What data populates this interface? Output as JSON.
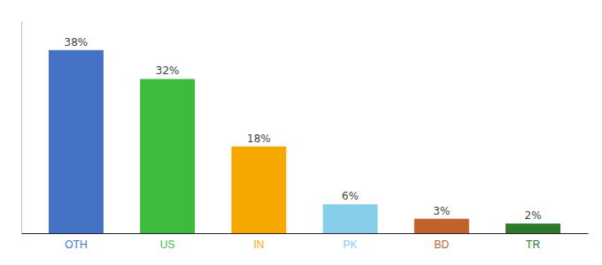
{
  "chart_data": {
    "type": "bar",
    "categories": [
      "OTH",
      "US",
      "IN",
      "PK",
      "BD",
      "TR"
    ],
    "values": [
      38,
      32,
      18,
      6,
      3,
      2
    ],
    "value_labels": [
      "38%",
      "32%",
      "18%",
      "6%",
      "3%",
      "2%"
    ],
    "colors": [
      "#4472c4",
      "#3dbb3d",
      "#f7a800",
      "#87ceeb",
      "#c0622a",
      "#2d7a2d"
    ],
    "ylim": [
      0,
      44
    ],
    "data_labels": true,
    "tick_labels": "x",
    "grid": false
  }
}
